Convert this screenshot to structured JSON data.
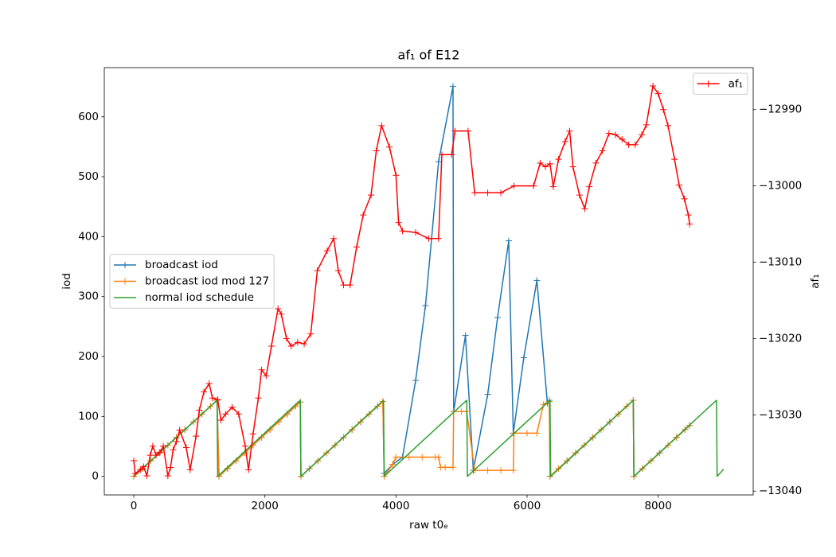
{
  "chart_data": {
    "type": "line",
    "title": "af₁ of E12",
    "xlabel": "raw t0ₑ",
    "ylabel": "iod",
    "y2label": "af₁",
    "y2label_color": "#ff0000",
    "xlim": [
      -450,
      9450
    ],
    "ylim": [
      -31,
      682
    ],
    "y2lim": [
      -13040.5,
      -12984.5
    ],
    "xticks": [
      0,
      2000,
      4000,
      6000,
      8000
    ],
    "yticks": [
      0,
      100,
      200,
      300,
      400,
      500,
      600
    ],
    "y2ticks": [
      {
        "value": -13040,
        "label": "−13040"
      },
      {
        "value": -13030,
        "label": "−13030"
      },
      {
        "value": -13020,
        "label": "−13020"
      },
      {
        "value": -13010,
        "label": "−13010"
      },
      {
        "value": -13000,
        "label": "−13000"
      },
      {
        "value": -12990,
        "label": "−12990"
      }
    ],
    "grid": false,
    "legend_loc": "center left",
    "legend2_loc": "upper right",
    "series": [
      {
        "name": "broadcast iod",
        "color": "#1f77b4",
        "marker": "+",
        "x": [
          0,
          130,
          260,
          390,
          520,
          650,
          780,
          910,
          1040,
          1170,
          1270,
          1300,
          1430,
          1560,
          1690,
          1820,
          1950,
          2080,
          2210,
          2340,
          2470,
          2540,
          2550,
          2680,
          2810,
          2940,
          3070,
          3200,
          3330,
          3460,
          3590,
          3720,
          3800,
          3820,
          3950,
          4100,
          4300,
          4450,
          4650,
          4870,
          4880,
          5060,
          5180,
          5400,
          5550,
          5720,
          5790,
          5950,
          6150,
          6310,
          6340,
          6350,
          6480,
          6610,
          6740,
          6870,
          7000,
          7130,
          7260,
          7390,
          7520,
          7620,
          7630,
          7760,
          7890,
          8020,
          8150,
          8280,
          8410,
          8480
        ],
        "values": [
          0,
          13,
          26,
          39,
          52,
          65,
          78,
          91,
          104,
          117,
          127,
          0,
          13,
          26,
          39,
          52,
          65,
          78,
          91,
          104,
          117,
          124,
          0,
          13,
          26,
          39,
          52,
          65,
          78,
          91,
          104,
          117,
          125,
          5,
          20,
          32,
          160,
          285,
          525,
          651,
          108,
          235,
          10,
          137,
          265,
          393,
          72,
          198,
          327,
          122,
          127,
          0,
          13,
          26,
          39,
          52,
          65,
          78,
          91,
          104,
          117,
          127,
          0,
          13,
          26,
          39,
          52,
          65,
          78,
          85
        ]
      },
      {
        "name": "broadcast iod mod 127",
        "color": "#ff7f0e",
        "marker": "+",
        "x": [
          0,
          130,
          260,
          390,
          520,
          650,
          780,
          910,
          1040,
          1170,
          1270,
          1300,
          1430,
          1560,
          1690,
          1820,
          1950,
          2080,
          2210,
          2340,
          2470,
          2540,
          2550,
          2680,
          2810,
          2940,
          3070,
          3200,
          3330,
          3460,
          3590,
          3720,
          3800,
          3820,
          3950,
          4000,
          4200,
          4400,
          4600,
          4650,
          4680,
          4750,
          4870,
          4880,
          5000,
          5080,
          5200,
          5400,
          5600,
          5790,
          5800,
          6000,
          6150,
          6250,
          6340,
          6350,
          6480,
          6610,
          6740,
          6870,
          7000,
          7130,
          7260,
          7390,
          7520,
          7620,
          7630,
          7760,
          7890,
          8020,
          8150,
          8280,
          8410,
          8480
        ],
        "values": [
          0,
          13,
          26,
          39,
          52,
          65,
          78,
          91,
          104,
          117,
          127,
          0,
          13,
          26,
          39,
          52,
          65,
          78,
          91,
          104,
          117,
          124,
          0,
          13,
          26,
          39,
          52,
          65,
          78,
          91,
          104,
          117,
          125,
          0,
          20,
          32,
          32,
          32,
          32,
          32,
          15,
          15,
          15,
          108,
          108,
          108,
          10,
          10,
          10,
          10,
          72,
          72,
          72,
          120,
          125,
          0,
          13,
          26,
          39,
          52,
          65,
          78,
          91,
          104,
          117,
          127,
          0,
          13,
          26,
          39,
          52,
          65,
          78,
          85
        ]
      },
      {
        "name": "normal iod schedule",
        "color": "#2ca02c",
        "x": [
          0,
          1270,
          1280,
          2540,
          2550,
          3810,
          3820,
          5080,
          5090,
          6350,
          6360,
          7620,
          7630,
          8890,
          8900,
          9000
        ],
        "values": [
          0,
          127,
          0,
          127,
          0,
          127,
          0,
          127,
          0,
          127,
          0,
          127,
          0,
          127,
          0,
          12
        ]
      },
      {
        "name": "af₁",
        "color": "#ff0000",
        "marker": "+",
        "axis": "y2",
        "x": [
          0,
          20,
          100,
          150,
          200,
          250,
          290,
          340,
          400,
          450,
          520,
          560,
          600,
          650,
          700,
          800,
          860,
          950,
          1000,
          1070,
          1150,
          1200,
          1280,
          1330,
          1400,
          1500,
          1600,
          1700,
          1750,
          1820,
          1900,
          1950,
          2020,
          2100,
          2200,
          2250,
          2330,
          2400,
          2500,
          2600,
          2700,
          2800,
          2950,
          3050,
          3120,
          3200,
          3300,
          3400,
          3500,
          3620,
          3700,
          3780,
          3900,
          4000,
          4040,
          4100,
          4300,
          4500,
          4650,
          4700,
          4850,
          4900,
          5100,
          5200,
          5400,
          5600,
          5800,
          6100,
          6200,
          6280,
          6350,
          6400,
          6480,
          6580,
          6650,
          6700,
          6800,
          6880,
          6950,
          7050,
          7150,
          7250,
          7350,
          7450,
          7550,
          7650,
          7750,
          7820,
          7920,
          8000,
          8080,
          8150,
          8250,
          8320,
          8400,
          8460,
          8480
        ],
        "values": [
          -13036.0,
          -13037.7,
          -13037.2,
          -13036.8,
          -13038.0,
          -13035.3,
          -13034.1,
          -13035.3,
          -13034.9,
          -13034.1,
          -13038.0,
          -13036.9,
          -13034.6,
          -13033.5,
          -13032.0,
          -13034.3,
          -13037.2,
          -13032.8,
          -13029.4,
          -13027.0,
          -13025.9,
          -13027.8,
          -13028.0,
          -13030.7,
          -13029.9,
          -13029.0,
          -13029.9,
          -13034.1,
          -13037.2,
          -13032.5,
          -13027.8,
          -13024.1,
          -13024.9,
          -13021.0,
          -13016.1,
          -13016.8,
          -13020.0,
          -13021.0,
          -13020.5,
          -13020.7,
          -13019.4,
          -13011.1,
          -13008.5,
          -13006.9,
          -13011.1,
          -13013.0,
          -13013.0,
          -13008.0,
          -13003.8,
          -13001.2,
          -12995.4,
          -12992.1,
          -12994.9,
          -12998.6,
          -13004.8,
          -13005.9,
          -13006.1,
          -13006.9,
          -13006.9,
          -12995.9,
          -12995.9,
          -12992.8,
          -12992.8,
          -13000.9,
          -13000.9,
          -13000.9,
          -13000.0,
          -13000.0,
          -12997.0,
          -12997.5,
          -12997.1,
          -13000.1,
          -12996.5,
          -12994.2,
          -12992.8,
          -12997.5,
          -13001.2,
          -13003.0,
          -13000.1,
          -12997.0,
          -12995.4,
          -12993.1,
          -12993.3,
          -12993.9,
          -12994.6,
          -12994.6,
          -12993.3,
          -12992.0,
          -12986.9,
          -12987.9,
          -12990.0,
          -12992.1,
          -12996.5,
          -12999.9,
          -13001.7,
          -13003.8,
          -13005.0
        ]
      }
    ]
  }
}
